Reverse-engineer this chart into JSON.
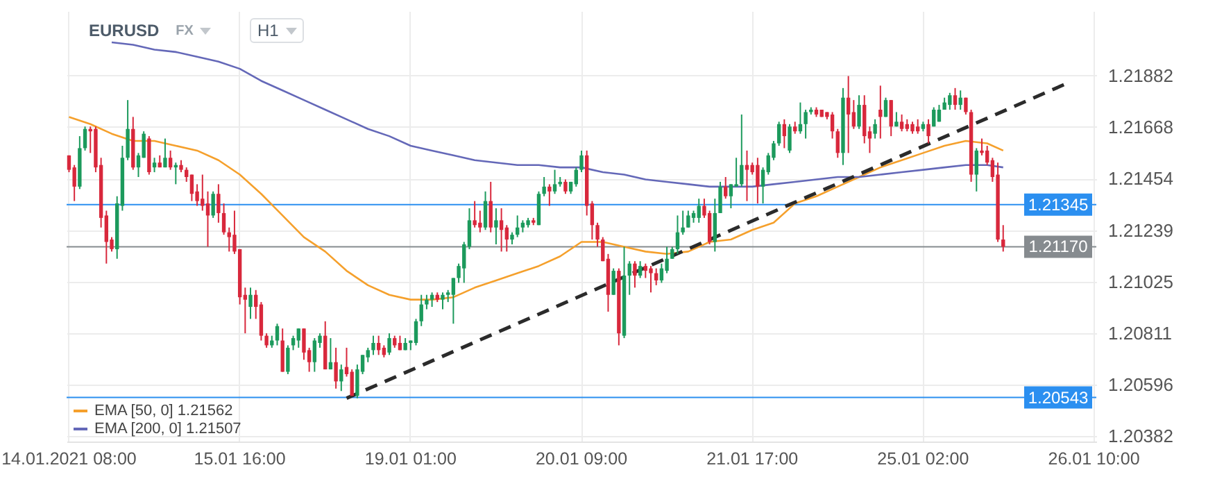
{
  "chart_data": {
    "type": "candlestick",
    "title": "EURUSD",
    "annotations": [
      "FX",
      "H1"
    ],
    "categories": [
      "14.01.2021 08:00",
      null,
      null,
      null,
      null,
      null,
      null,
      null,
      null,
      null,
      null,
      null,
      null,
      null,
      null,
      null,
      null,
      null,
      null,
      null,
      null,
      null,
      null,
      null,
      null,
      null,
      null,
      null,
      null,
      null,
      null,
      null,
      "15.01 16:00",
      null,
      null,
      null,
      null,
      null,
      null,
      null,
      null,
      null,
      null,
      null,
      null,
      null,
      null,
      null,
      null,
      null,
      null,
      null,
      null,
      null,
      null,
      null,
      null,
      null,
      null,
      null,
      null,
      null,
      null,
      null,
      "19.01 01:00",
      null,
      null,
      null,
      null,
      null,
      null,
      null,
      null,
      null,
      null,
      null,
      null,
      null,
      null,
      null,
      null,
      null,
      null,
      null,
      null,
      null,
      null,
      null,
      null,
      null,
      null,
      null,
      null,
      null,
      null,
      null,
      "20.01 09:00",
      null,
      null,
      null,
      null,
      null,
      null,
      null,
      null,
      null,
      null,
      null,
      null,
      null,
      null,
      null,
      null,
      null,
      null,
      null,
      null,
      null,
      null,
      null,
      null,
      null,
      null,
      null,
      null,
      null,
      null,
      null,
      "21.01 17:00",
      null,
      null,
      null,
      null,
      null,
      null,
      null,
      null,
      null,
      null,
      null,
      null,
      null,
      null,
      null,
      null,
      null,
      null,
      null,
      null,
      null,
      null,
      null,
      null,
      null,
      null,
      null,
      null,
      null,
      null,
      null,
      "25.01 02:00",
      null,
      null,
      null,
      null,
      null,
      null,
      null,
      null,
      null,
      null,
      null,
      null,
      null,
      null,
      null,
      null,
      null,
      null,
      null,
      null,
      null,
      null,
      null,
      null,
      null,
      null,
      null,
      null,
      null,
      null,
      null,
      "26.01 10:00"
    ],
    "ohlc": [
      [
        1.2155,
        1.2155,
        1.2148,
        1.2149
      ],
      [
        1.215,
        1.2151,
        1.2136,
        1.2142
      ],
      [
        1.2142,
        1.2163,
        1.2141,
        1.2158
      ],
      [
        1.2158,
        1.2167,
        1.2157,
        1.2166
      ],
      [
        1.2166,
        1.2167,
        1.2156,
        1.2165
      ],
      [
        1.2166,
        1.2167,
        1.2148,
        1.215
      ],
      [
        1.2151,
        1.2154,
        1.2125,
        1.2129
      ],
      [
        1.213,
        1.2132,
        1.211,
        1.2119
      ],
      [
        1.212,
        1.2121,
        1.2115,
        1.2116
      ],
      [
        1.2116,
        1.2138,
        1.2112,
        1.2135
      ],
      [
        1.2134,
        1.2159,
        1.2132,
        1.2154
      ],
      [
        1.2154,
        1.2178,
        1.2153,
        1.2166
      ],
      [
        1.2166,
        1.2171,
        1.2149,
        1.215
      ],
      [
        1.215,
        1.2156,
        1.2146,
        1.2155
      ],
      [
        1.2154,
        1.2165,
        1.2154,
        1.2164
      ],
      [
        1.2162,
        1.2163,
        1.2147,
        1.2148
      ],
      [
        1.215,
        1.2154,
        1.2148,
        1.2152
      ],
      [
        1.2152,
        1.2155,
        1.215,
        1.215
      ],
      [
        1.215,
        1.2162,
        1.215,
        1.2154
      ],
      [
        1.2154,
        1.2157,
        1.2149,
        1.215
      ],
      [
        1.215,
        1.2152,
        1.2143,
        1.2151
      ],
      [
        1.2151,
        1.2153,
        1.2148,
        1.2149
      ],
      [
        1.2149,
        1.215,
        1.2144,
        1.2146
      ],
      [
        1.2147,
        1.2147,
        1.2136,
        1.2139
      ],
      [
        1.214,
        1.2143,
        1.2134,
        1.2136
      ],
      [
        1.2137,
        1.2147,
        1.2132,
        1.2134
      ],
      [
        1.2135,
        1.214,
        1.2117,
        1.213
      ],
      [
        1.213,
        1.214,
        1.2129,
        1.2139
      ],
      [
        1.2139,
        1.2143,
        1.2127,
        1.2131
      ],
      [
        1.2131,
        1.2135,
        1.2122,
        1.2123
      ],
      [
        1.2123,
        1.2125,
        1.2115,
        1.2121
      ],
      [
        1.2122,
        1.2132,
        1.2114,
        1.2115
      ],
      [
        1.2116,
        1.2116,
        1.2093,
        1.2096
      ],
      [
        1.2097,
        1.21,
        1.2081,
        1.2095
      ],
      [
        1.2092,
        1.21,
        1.2087,
        1.2097
      ],
      [
        1.2097,
        1.2099,
        1.2087,
        1.2092
      ],
      [
        1.2093,
        1.2094,
        1.2078,
        1.208
      ],
      [
        1.208,
        1.2081,
        1.2075,
        1.2076
      ],
      [
        1.2076,
        1.208,
        1.2075,
        1.2078
      ],
      [
        1.2078,
        1.2085,
        1.2076,
        1.2084
      ],
      [
        1.2078,
        1.2083,
        1.2065,
        1.2065
      ],
      [
        1.2065,
        1.2076,
        1.2064,
        1.2075
      ],
      [
        1.2076,
        1.208,
        1.2074,
        1.2079
      ],
      [
        1.2078,
        1.2083,
        1.2075,
        1.2083
      ],
      [
        1.2083,
        1.2083,
        1.207,
        1.2073
      ],
      [
        1.2074,
        1.2075,
        1.2065,
        1.2069
      ],
      [
        1.2069,
        1.2079,
        1.2065,
        1.2078
      ],
      [
        1.2077,
        1.2081,
        1.2075,
        1.208
      ],
      [
        1.208,
        1.2086,
        1.2066,
        1.2066
      ],
      [
        1.2066,
        1.2079,
        1.2066,
        1.2069
      ],
      [
        1.2069,
        1.2075,
        1.2058,
        1.2061
      ],
      [
        1.2061,
        1.2068,
        1.2057,
        1.2066
      ],
      [
        1.2067,
        1.2075,
        1.2063,
        1.2064
      ],
      [
        1.2065,
        1.2066,
        1.2055,
        1.2055
      ],
      [
        1.2055,
        1.2068,
        1.2054,
        1.2066
      ],
      [
        1.2065,
        1.2072,
        1.2064,
        1.2072
      ],
      [
        1.2071,
        1.2075,
        1.2069,
        1.2074
      ],
      [
        1.2074,
        1.208,
        1.2072,
        1.2077
      ],
      [
        1.2077,
        1.208,
        1.2072,
        1.2074
      ],
      [
        1.2075,
        1.2076,
        1.2071,
        1.2072
      ],
      [
        1.2073,
        1.2081,
        1.2072,
        1.2079
      ],
      [
        1.2079,
        1.208,
        1.2075,
        1.2076
      ],
      [
        1.2077,
        1.208,
        1.2074,
        1.2074
      ],
      [
        1.2074,
        1.2079,
        1.2074,
        1.2077
      ],
      [
        1.2077,
        1.2078,
        1.2074,
        1.2078
      ],
      [
        1.2077,
        1.2087,
        1.2076,
        1.2086
      ],
      [
        1.2086,
        1.2097,
        1.2084,
        1.2093
      ],
      [
        1.2093,
        1.2097,
        1.2091,
        1.2095
      ],
      [
        1.2095,
        1.2098,
        1.2092,
        1.2097
      ],
      [
        1.2097,
        1.2098,
        1.2094,
        1.2095
      ],
      [
        1.2095,
        1.2098,
        1.2091,
        1.2097
      ],
      [
        1.2097,
        1.2099,
        1.2094,
        1.2098
      ],
      [
        1.2097,
        1.2104,
        1.2085,
        1.2104
      ],
      [
        1.2104,
        1.211,
        1.2102,
        1.2109
      ],
      [
        1.2108,
        1.2119,
        1.2102,
        1.2118
      ],
      [
        1.2117,
        1.2133,
        1.2116,
        1.2128
      ],
      [
        1.2128,
        1.2136,
        1.2125,
        1.2126
      ],
      [
        1.2127,
        1.2132,
        1.2123,
        1.2125
      ],
      [
        1.2125,
        1.214,
        1.2124,
        1.2136
      ],
      [
        1.2136,
        1.2144,
        1.2123,
        1.2125
      ],
      [
        1.2125,
        1.2133,
        1.2118,
        1.2128
      ],
      [
        1.2128,
        1.2133,
        1.2115,
        1.2124
      ],
      [
        1.2125,
        1.2126,
        1.2115,
        1.212
      ],
      [
        1.212,
        1.2123,
        1.2118,
        1.2122
      ],
      [
        1.2122,
        1.213,
        1.2121,
        1.2125
      ],
      [
        1.2125,
        1.2128,
        1.2123,
        1.2127
      ],
      [
        1.2126,
        1.2129,
        1.2125,
        1.2128
      ],
      [
        1.2128,
        1.2129,
        1.2126,
        1.2127
      ],
      [
        1.2126,
        1.214,
        1.2126,
        1.2139
      ],
      [
        1.2139,
        1.2146,
        1.2138,
        1.2142
      ],
      [
        1.2142,
        1.2143,
        1.2134,
        1.214
      ],
      [
        1.214,
        1.2149,
        1.2139,
        1.2143
      ],
      [
        1.2143,
        1.2146,
        1.2142,
        1.2144
      ],
      [
        1.2144,
        1.2145,
        1.2139,
        1.214
      ],
      [
        1.214,
        1.2144,
        1.2139,
        1.2144
      ],
      [
        1.2143,
        1.215,
        1.2142,
        1.2149
      ],
      [
        1.2149,
        1.2157,
        1.2148,
        1.2155
      ],
      [
        1.2155,
        1.2157,
        1.213,
        1.2134
      ],
      [
        1.2135,
        1.2136,
        1.212,
        1.2126
      ],
      [
        1.2126,
        1.2127,
        1.2117,
        1.212
      ],
      [
        1.212,
        1.2121,
        1.2111,
        1.2111
      ],
      [
        1.2112,
        1.2114,
        1.209,
        1.2097
      ],
      [
        1.2097,
        1.2108,
        1.2097,
        1.2107
      ],
      [
        1.2107,
        1.2108,
        1.2076,
        1.2081
      ],
      [
        1.208,
        1.2117,
        1.2079,
        1.2105
      ],
      [
        1.2105,
        1.2111,
        1.2097,
        1.211
      ],
      [
        1.211,
        1.2111,
        1.21,
        1.2105
      ],
      [
        1.2105,
        1.2111,
        1.2104,
        1.2109
      ],
      [
        1.2109,
        1.211,
        1.2104,
        1.2107
      ],
      [
        1.2108,
        1.2109,
        1.2098,
        1.2106
      ],
      [
        1.2106,
        1.2108,
        1.2101,
        1.2103
      ],
      [
        1.2103,
        1.211,
        1.2102,
        1.2108
      ],
      [
        1.2107,
        1.2117,
        1.2106,
        1.2112
      ],
      [
        1.2112,
        1.2117,
        1.2112,
        1.2116
      ],
      [
        1.2116,
        1.213,
        1.2114,
        1.2123
      ],
      [
        1.2123,
        1.2132,
        1.2122,
        1.2125
      ],
      [
        1.2125,
        1.2132,
        1.2125,
        1.213
      ],
      [
        1.2129,
        1.2132,
        1.2127,
        1.2131
      ],
      [
        1.2129,
        1.2137,
        1.2127,
        1.2134
      ],
      [
        1.2134,
        1.2137,
        1.2129,
        1.213
      ],
      [
        1.2131,
        1.2132,
        1.2118,
        1.2119
      ],
      [
        1.2119,
        1.2137,
        1.2115,
        1.2131
      ],
      [
        1.2131,
        1.2144,
        1.2131,
        1.2142
      ],
      [
        1.2142,
        1.2146,
        1.2137,
        1.2138
      ],
      [
        1.2138,
        1.2143,
        1.2133,
        1.2143
      ],
      [
        1.2142,
        1.2154,
        1.2142,
        1.2143
      ],
      [
        1.2143,
        1.2172,
        1.2142,
        1.2151
      ],
      [
        1.2151,
        1.2157,
        1.2136,
        1.2149
      ],
      [
        1.2151,
        1.2152,
        1.2147,
        1.2148
      ],
      [
        1.2151,
        1.2154,
        1.2135,
        1.2142
      ],
      [
        1.2142,
        1.215,
        1.2135,
        1.2149
      ],
      [
        1.2148,
        1.2156,
        1.2147,
        1.2155
      ],
      [
        1.2154,
        1.2161,
        1.2153,
        1.216
      ],
      [
        1.216,
        1.2169,
        1.2159,
        1.2168
      ],
      [
        1.2168,
        1.217,
        1.2158,
        1.2163
      ],
      [
        1.2157,
        1.2168,
        1.2156,
        1.2167
      ],
      [
        1.2167,
        1.2169,
        1.2164,
        1.2165
      ],
      [
        1.2165,
        1.2177,
        1.2164,
        1.2168
      ],
      [
        1.2168,
        1.2174,
        1.2162,
        1.2173
      ],
      [
        1.2173,
        1.2175,
        1.2172,
        1.2174
      ],
      [
        1.2174,
        1.2175,
        1.2171,
        1.2172
      ],
      [
        1.2174,
        1.2174,
        1.2171,
        1.2171
      ],
      [
        1.2173,
        1.2173,
        1.217,
        1.2171
      ],
      [
        1.2172,
        1.2173,
        1.2162,
        1.2165
      ],
      [
        1.2165,
        1.2166,
        1.2154,
        1.2156
      ],
      [
        1.2156,
        1.2183,
        1.2151,
        1.2179
      ],
      [
        1.2179,
        1.2188,
        1.2156,
        1.2172
      ],
      [
        1.2173,
        1.2178,
        1.2166,
        1.2167
      ],
      [
        1.2167,
        1.218,
        1.2166,
        1.2176
      ],
      [
        1.2176,
        1.218,
        1.216,
        1.2163
      ],
      [
        1.2165,
        1.2167,
        1.2156,
        1.2162
      ],
      [
        1.2164,
        1.217,
        1.2162,
        1.2168
      ],
      [
        1.2174,
        1.2184,
        1.2162,
        1.2171
      ],
      [
        1.2171,
        1.2179,
        1.2171,
        1.2178
      ],
      [
        1.2178,
        1.2178,
        1.2163,
        1.2167
      ],
      [
        1.2167,
        1.2173,
        1.2167,
        1.2169
      ],
      [
        1.2169,
        1.2172,
        1.2165,
        1.2166
      ],
      [
        1.2168,
        1.217,
        1.2165,
        1.2166
      ],
      [
        1.2168,
        1.2169,
        1.2164,
        1.2165
      ],
      [
        1.2167,
        1.217,
        1.2164,
        1.2165
      ],
      [
        1.2166,
        1.2169,
        1.2165,
        1.2168
      ],
      [
        1.2168,
        1.217,
        1.216,
        1.2163
      ],
      [
        1.2167,
        1.2175,
        1.2167,
        1.2174
      ],
      [
        1.2169,
        1.2176,
        1.2169,
        1.2174
      ],
      [
        1.2174,
        1.2179,
        1.2174,
        1.2177
      ],
      [
        1.2176,
        1.2181,
        1.2174,
        1.218
      ],
      [
        1.218,
        1.2183,
        1.2174,
        1.2176
      ],
      [
        1.2176,
        1.2182,
        1.2174,
        1.2179
      ],
      [
        1.2179,
        1.2179,
        1.2172,
        1.2173
      ],
      [
        1.2173,
        1.2174,
        1.2144,
        1.2147
      ],
      [
        1.2147,
        1.2158,
        1.214,
        1.2157
      ],
      [
        1.2157,
        1.2162,
        1.2155,
        1.2156
      ],
      [
        1.2157,
        1.2159,
        1.2151,
        1.2152
      ],
      [
        1.2153,
        1.2154,
        1.2144,
        1.2146
      ],
      [
        1.2147,
        1.2152,
        1.2119,
        1.212
      ],
      [
        1.212,
        1.2126,
        1.2115,
        1.2117
      ],
      null,
      null,
      null,
      null,
      null,
      null,
      null,
      null,
      null,
      null,
      null,
      null,
      null,
      null,
      null,
      null,
      null
    ],
    "series": [
      {
        "name": "EMA [50, 0] 1.21562",
        "type": "line",
        "color": "#f5a02c",
        "values": [
          1.2171,
          null,
          null,
          null,
          1.2168,
          null,
          null,
          null,
          1.2164,
          null,
          null,
          null,
          1.2161,
          null,
          null,
          null,
          1.2161,
          null,
          null,
          null,
          1.2159,
          null,
          null,
          null,
          1.2157,
          null,
          null,
          null,
          1.2153,
          null,
          null,
          null,
          1.2147,
          null,
          null,
          null,
          1.2139,
          null,
          null,
          null,
          1.213,
          null,
          null,
          null,
          1.2121,
          null,
          null,
          null,
          1.2115,
          null,
          null,
          null,
          1.2107,
          null,
          null,
          null,
          1.2101,
          null,
          null,
          null,
          1.2097,
          null,
          null,
          null,
          1.2095,
          null,
          null,
          null,
          1.2095,
          null,
          null,
          null,
          1.2096,
          null,
          null,
          null,
          1.21,
          null,
          null,
          null,
          1.2103,
          null,
          null,
          null,
          1.2106,
          null,
          null,
          null,
          1.2109,
          null,
          null,
          null,
          1.2113,
          null,
          null,
          null,
          1.2119,
          null,
          null,
          null,
          1.2119,
          null,
          null,
          null,
          1.2117,
          null,
          null,
          null,
          1.2115,
          null,
          null,
          null,
          1.2114,
          null,
          null,
          null,
          1.2115,
          null,
          null,
          null,
          1.2119,
          null,
          null,
          null,
          1.212,
          null,
          null,
          null,
          1.2124,
          null,
          null,
          null,
          1.2127,
          null,
          null,
          null,
          1.2135,
          null,
          null,
          null,
          1.2138,
          null,
          null,
          null,
          1.2142,
          null,
          null,
          null,
          1.2146,
          null,
          null,
          null,
          1.215,
          null,
          null,
          null,
          1.2153,
          null,
          null,
          null,
          1.2156,
          null,
          null,
          null,
          1.2159,
          null,
          null,
          null,
          1.2161,
          null,
          null,
          null,
          1.216,
          null,
          null,
          1.2157,
          null,
          null,
          null,
          null,
          null,
          null,
          null,
          null,
          null,
          null,
          null,
          null,
          null,
          null,
          null,
          null,
          null
        ]
      },
      {
        "name": "EMA [200, 0] 1.21507",
        "type": "line",
        "color": "#6468b8",
        "values": [
          null,
          null,
          null,
          null,
          null,
          null,
          null,
          null,
          1.2202,
          null,
          null,
          null,
          1.2201,
          null,
          null,
          null,
          1.2199,
          null,
          null,
          null,
          1.2198,
          null,
          null,
          null,
          1.2196,
          null,
          null,
          null,
          1.2194,
          null,
          null,
          null,
          1.2191,
          null,
          null,
          null,
          1.2186,
          null,
          null,
          null,
          1.2182,
          null,
          null,
          null,
          1.2178,
          null,
          null,
          null,
          1.2174,
          null,
          null,
          null,
          1.217,
          null,
          null,
          null,
          1.2166,
          null,
          null,
          null,
          1.2163,
          null,
          null,
          null,
          1.2159,
          null,
          null,
          null,
          1.2157,
          null,
          null,
          null,
          1.2155,
          null,
          null,
          null,
          1.2153,
          null,
          null,
          null,
          1.2152,
          null,
          null,
          null,
          1.2151,
          null,
          null,
          null,
          1.2151,
          null,
          null,
          null,
          1.215,
          null,
          null,
          null,
          1.215,
          null,
          null,
          null,
          1.2148,
          null,
          null,
          null,
          1.2147,
          null,
          null,
          null,
          1.2145,
          null,
          null,
          null,
          1.2144,
          null,
          null,
          null,
          1.2143,
          null,
          null,
          null,
          1.2142,
          null,
          null,
          null,
          1.2142,
          null,
          null,
          null,
          1.2142,
          null,
          null,
          null,
          1.2143,
          null,
          null,
          null,
          1.2144,
          null,
          null,
          null,
          1.2145,
          null,
          null,
          null,
          1.2146,
          null,
          null,
          null,
          1.2146,
          null,
          null,
          null,
          1.2147,
          null,
          null,
          null,
          1.2148,
          null,
          null,
          null,
          1.2149,
          null,
          null,
          null,
          1.215,
          null,
          null,
          null,
          1.2151,
          null,
          null,
          null,
          1.2151,
          null,
          null,
          1.215,
          null,
          null,
          null,
          null,
          null,
          null,
          null,
          null,
          null,
          null,
          null,
          null,
          null,
          null,
          null,
          null,
          null
        ]
      },
      {
        "type": "line",
        "color": "#2b2b2b",
        "line_style": "dashed",
        "values": [
          null,
          null,
          null,
          null,
          null,
          null,
          null,
          null,
          null,
          null,
          null,
          null,
          null,
          null,
          null,
          null,
          null,
          null,
          null,
          null,
          null,
          null,
          null,
          null,
          null,
          null,
          null,
          null,
          null,
          null,
          null,
          null,
          null,
          null,
          null,
          null,
          null,
          null,
          null,
          null,
          null,
          null,
          null,
          null,
          null,
          null,
          null,
          null,
          null,
          null,
          null,
          null,
          1.2054,
          null,
          null,
          null,
          null,
          null,
          null,
          null,
          null,
          null,
          null,
          null,
          null,
          null,
          null,
          null,
          null,
          null,
          null,
          null,
          null,
          null,
          null,
          null,
          null,
          null,
          null,
          null,
          null,
          null,
          null,
          null,
          null,
          null,
          null,
          null,
          null,
          null,
          null,
          null,
          null,
          null,
          null,
          null,
          null,
          null,
          null,
          null,
          null,
          null,
          null,
          null,
          null,
          null,
          null,
          null,
          null,
          null,
          null,
          null,
          null,
          null,
          null,
          null,
          null,
          null,
          null,
          null,
          null,
          null,
          null,
          null,
          null,
          null,
          null,
          null,
          null,
          null,
          null,
          null,
          null,
          null,
          null,
          null,
          null,
          null,
          null,
          null,
          null,
          null,
          null,
          null,
          null,
          null,
          null,
          null,
          null,
          null,
          null,
          null,
          null,
          null,
          null,
          null,
          null,
          null,
          null,
          null,
          null,
          null,
          null,
          null,
          null,
          null,
          null,
          null,
          null,
          null,
          null,
          null,
          null,
          null,
          null,
          null,
          null,
          null,
          null,
          null,
          null,
          null,
          null,
          null,
          null,
          null,
          null,
          1.2185,
          null,
          null,
          null,
          null,
          null
        ]
      }
    ],
    "ref_lines": [
      {
        "axis": "y",
        "value": 1.21345,
        "label": "1.21345",
        "color": "#2b8ff0"
      },
      {
        "axis": "y",
        "value": 1.20543,
        "label": "1.20543",
        "color": "#2b8ff0"
      },
      {
        "axis": "y",
        "value": 1.2117,
        "label": "1.21170",
        "color": "#868b8f"
      }
    ],
    "ylim": [
      1.2036,
      1.2215
    ],
    "yticks": [
      1.21882,
      1.21668,
      1.21454,
      1.21239,
      1.21025,
      1.20811,
      1.20596,
      1.20382
    ],
    "grid": true,
    "legend": "bottom left"
  }
}
